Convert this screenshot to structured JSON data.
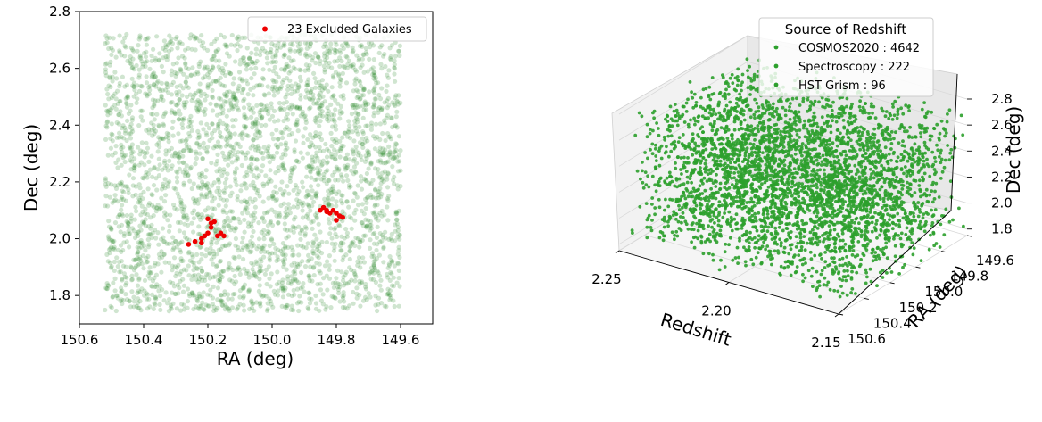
{
  "chart_data": [
    {
      "type": "scatter",
      "xlabel": "RA (deg)",
      "ylabel": "Dec (deg)",
      "xlim": [
        150.6,
        149.5
      ],
      "ylim": [
        1.7,
        2.8
      ],
      "x_inverted": true,
      "xticks": [
        "150.6",
        "150.4",
        "150.2",
        "150.0",
        "149.8",
        "149.6"
      ],
      "yticks": [
        "1.8",
        "2.0",
        "2.2",
        "2.4",
        "2.6",
        "2.8"
      ],
      "legend_position": "upper-right",
      "background_points": {
        "count": 4960,
        "ra_range": [
          149.6,
          150.52
        ],
        "dec_range": [
          1.745,
          2.72
        ],
        "color": "#2a8a2a"
      },
      "series": [
        {
          "name": "23 Excluded Galaxies",
          "color": "#ee0000",
          "points": [
            [
              150.26,
              1.98
            ],
            [
              150.24,
              1.99
            ],
            [
              150.22,
              2.0
            ],
            [
              150.21,
              2.01
            ],
            [
              150.2,
              2.02
            ],
            [
              150.19,
              2.04
            ],
            [
              150.18,
              2.06
            ],
            [
              150.17,
              2.01
            ],
            [
              150.16,
              2.02
            ],
            [
              150.15,
              2.01
            ],
            [
              150.19,
              2.055
            ],
            [
              150.22,
              1.985
            ],
            [
              150.2,
              2.07
            ],
            [
              149.85,
              2.1
            ],
            [
              149.84,
              2.11
            ],
            [
              149.83,
              2.1
            ],
            [
              149.82,
              2.09
            ],
            [
              149.81,
              2.1
            ],
            [
              149.8,
              2.09
            ],
            [
              149.79,
              2.08
            ],
            [
              149.78,
              2.075
            ],
            [
              149.8,
              2.065
            ],
            [
              149.83,
              2.095
            ]
          ]
        }
      ]
    },
    {
      "type": "scatter",
      "projection": "3d",
      "xlabel": "Redshift",
      "ylabel": "RA (deg)",
      "zlabel": "Dec (deg)",
      "redshift_range": [
        2.15,
        2.25
      ],
      "ra_range": [
        149.6,
        150.6
      ],
      "dec_range": [
        1.75,
        2.8
      ],
      "redshift_ticks": [
        "2.25",
        "2.20",
        "2.15"
      ],
      "ra_ticks": [
        "149.6",
        "149.8",
        "150.0",
        "150.2",
        "150.4",
        "150.6"
      ],
      "dec_ticks": [
        "1.8",
        "2.0",
        "2.2",
        "2.4",
        "2.6",
        "2.8"
      ],
      "legend_title": "Source of Redshift",
      "legend_position": "top",
      "color": "#2ca02c",
      "series": [
        {
          "name": "COSMOS2020 : 4642",
          "count": 4642
        },
        {
          "name": "Spectroscopy : 222",
          "count": 222
        },
        {
          "name": "HST Grism : 96",
          "count": 96
        }
      ]
    }
  ]
}
